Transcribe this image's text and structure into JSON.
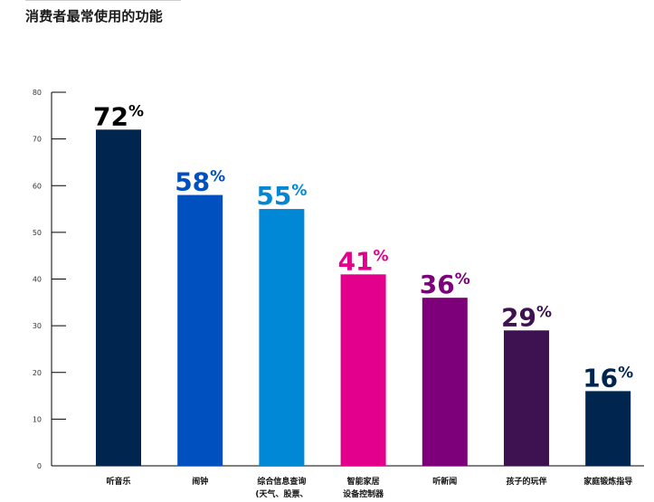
{
  "chart_data": {
    "type": "bar",
    "title": "消费者最常使用的功能",
    "xlabel": "",
    "ylabel": "",
    "ylim": [
      0,
      80
    ],
    "yticks": [
      0,
      10,
      20,
      30,
      40,
      50,
      60,
      70,
      80
    ],
    "grid": false,
    "legend": "none",
    "categories": [
      [
        "听音乐"
      ],
      [
        "闹钟"
      ],
      [
        "综合信息查询",
        "(天气、股票、"
      ],
      [
        "智能家居",
        "设备控制器"
      ],
      [
        "听新闻"
      ],
      [
        "孩子的玩伴"
      ],
      [
        "家庭锻炼指导"
      ]
    ],
    "values": [
      72,
      58,
      55,
      41,
      36,
      29,
      16
    ],
    "value_labels": [
      "72",
      "58",
      "55",
      "41",
      "36",
      "29",
      "16"
    ],
    "value_suffix": "%",
    "bar_colors": [
      "#00264f",
      "#0050bf",
      "#0087d6",
      "#e3008c",
      "#7d007a",
      "#3e1150",
      "#00264f"
    ],
    "label_colors": [
      "#000000",
      "#0050bf",
      "#0087d6",
      "#e3008c",
      "#7d007a",
      "#3e1150",
      "#00264f"
    ],
    "axis_color": "#000000"
  }
}
